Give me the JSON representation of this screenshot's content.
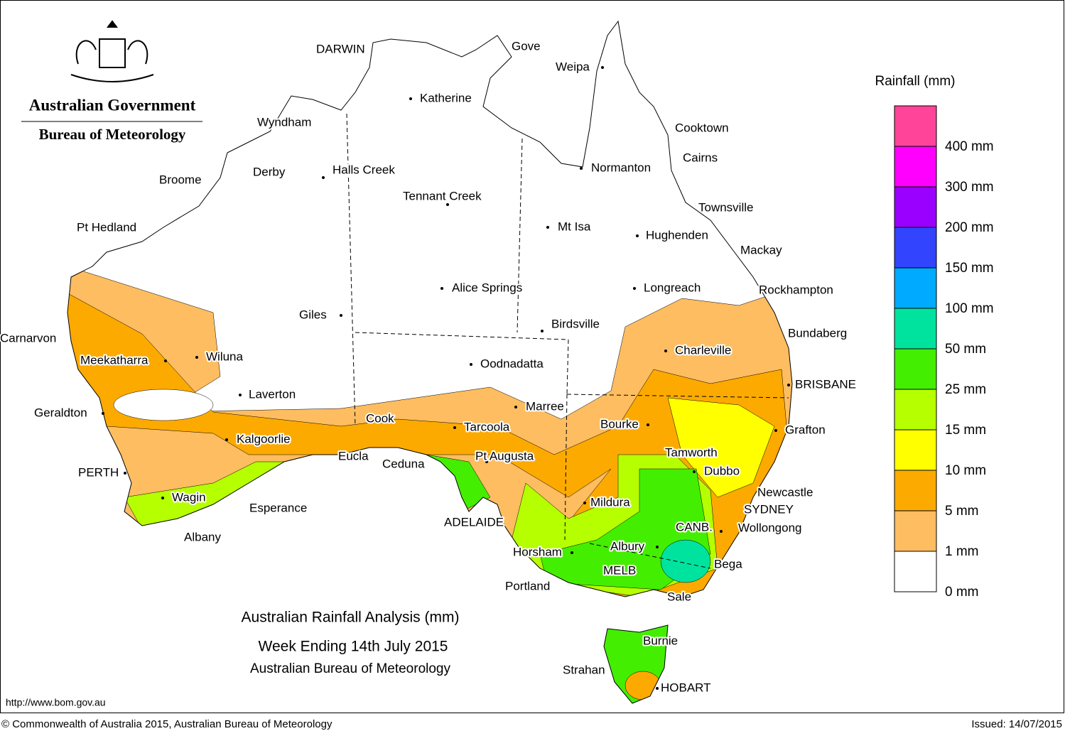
{
  "header": {
    "government": "Australian Government",
    "bureau": "Bureau of Meteorology"
  },
  "title": {
    "line1": "Australian Rainfall Analysis (mm)",
    "line2": "Week Ending 14th July 2015",
    "line3": "Australian Bureau of Meteorology"
  },
  "legend": {
    "title": "Rainfall (mm)",
    "colors": [
      "#ffffff",
      "#fdbd60",
      "#fdaa00",
      "#ffff00",
      "#b5ff00",
      "#44ee00",
      "#00e39e",
      "#00aaff",
      "#3344ff",
      "#9900ff",
      "#ff00ff",
      "#ff4499"
    ],
    "labels": [
      "0 mm",
      "1 mm",
      "5 mm",
      "10 mm",
      "15 mm",
      "25 mm",
      "50 mm",
      "100 mm",
      "150 mm",
      "200 mm",
      "300 mm",
      "400 mm"
    ]
  },
  "places": [
    "DARWIN",
    "Gove",
    "Weipa",
    "Katherine",
    "Wyndham",
    "Cooktown",
    "Cairns",
    "Derby",
    "Halls Creek",
    "Normanton",
    "Broome",
    "Tennant Creek",
    "Townsville",
    "Pt Hedland",
    "Mt Isa",
    "Hughenden",
    "Mackay",
    "Alice Springs",
    "Longreach",
    "Rockhampton",
    "Giles",
    "Birdsville",
    "Bundaberg",
    "Carnarvon",
    "Charleville",
    "Meekatharra",
    "Wiluna",
    "Oodnadatta",
    "BRISBANE",
    "Laverton",
    "Marree",
    "Geraldton",
    "Cook",
    "Bourke",
    "Tarcoola",
    "Grafton",
    "Kalgoorlie",
    "Tamworth",
    "Eucla",
    "Pt Augusta",
    "Ceduna",
    "Dubbo",
    "PERTH",
    "Newcastle",
    "Wagin",
    "Mildura",
    "Esperance",
    "SYDNEY",
    "ADELAIDE",
    "CANB.",
    "Wollongong",
    "Albany",
    "Albury",
    "Horsham",
    "Bega",
    "MELB",
    "Portland",
    "Sale",
    "Burnie",
    "Strahan",
    "HOBART"
  ],
  "footer": {
    "url": "http://www.bom.gov.au",
    "copyright": "© Commonwealth of Australia 2015, Australian Bureau of Meteorology",
    "issued": "Issued: 14/07/2015"
  }
}
